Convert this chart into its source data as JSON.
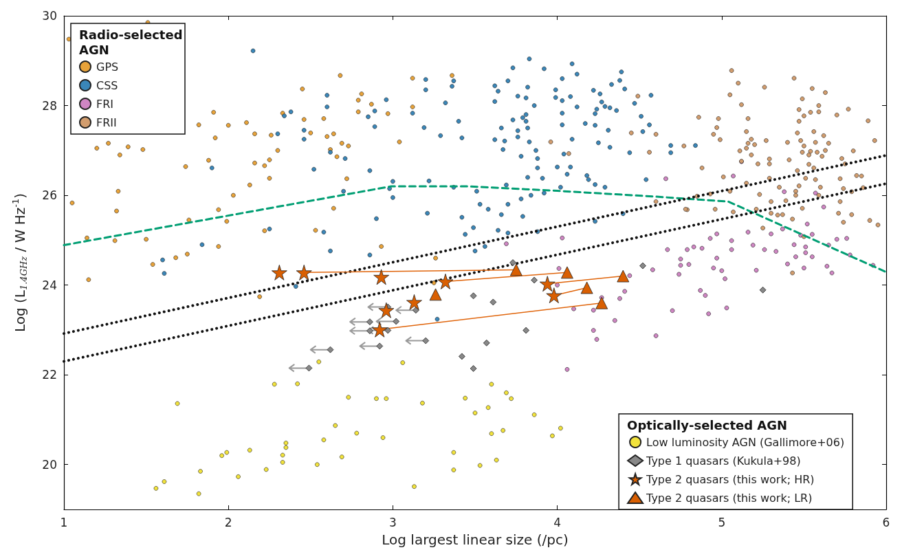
{
  "chart_data": {
    "type": "scatter",
    "xlabel": "Log largest linear size (/pc)",
    "ylabel": "Log (L$_{1.4GHz}$ / W Hz$^{-1}$)",
    "xlim": [
      1,
      6
    ],
    "xticks": [
      1,
      2,
      3,
      4,
      5,
      6
    ],
    "ylim": [
      19,
      30
    ],
    "yticks": [
      20,
      22,
      24,
      26,
      28,
      30
    ],
    "legend": [
      "top left",
      "bottom right"
    ],
    "legend_title": [
      "Radio-selected AGN",
      "Optically-selected AGN"
    ],
    "series": [
      {
        "name": "GPS",
        "color": "#e8a33a",
        "marker": "circle",
        "x": [
          1.03,
          1.51,
          2.68,
          2.45,
          2.81,
          2.79,
          2.87,
          1.91,
          2.33,
          2.79,
          2.97,
          2.46,
          2.58,
          2.11,
          2.0,
          1.82,
          2.16,
          2.26,
          2.5,
          2.64,
          2.6,
          1.92,
          3.04,
          2.69,
          2.73,
          1.2,
          1.27,
          1.39,
          1.48,
          1.34,
          2.3,
          2.62,
          2.66,
          1.88,
          2.16,
          2.22,
          2.25,
          1.74,
          2.25,
          2.72,
          2.13,
          2.03,
          1.33,
          1.05,
          1.32,
          2.64,
          1.94,
          1.76,
          1.99,
          2.22,
          2.53,
          1.14,
          1.31,
          1.5,
          1.94,
          2.93,
          1.68,
          1.75,
          3.12,
          3.36,
          3.12,
          3.26,
          1.15,
          1.54,
          3.25,
          2.19
        ],
        "values": [
          29.48,
          29.85,
          28.67,
          28.37,
          28.26,
          28.12,
          28.03,
          27.85,
          27.83,
          27.86,
          27.82,
          27.69,
          27.71,
          27.62,
          27.56,
          27.57,
          27.37,
          27.34,
          27.39,
          27.37,
          27.31,
          27.28,
          27.19,
          27.16,
          27.1,
          27.05,
          27.16,
          27.08,
          27.02,
          26.9,
          27.0,
          27.02,
          26.86,
          26.78,
          26.72,
          26.66,
          26.79,
          26.64,
          26.38,
          26.37,
          26.23,
          26.0,
          26.09,
          25.83,
          25.65,
          25.71,
          25.68,
          25.45,
          25.42,
          25.21,
          25.22,
          25.05,
          24.99,
          25.02,
          24.86,
          24.86,
          24.61,
          24.69,
          28.61,
          28.67,
          27.97,
          24.6,
          24.12,
          24.46,
          24.05,
          23.74
        ]
      },
      {
        "name": "CSS",
        "color": "#3a86b8",
        "marker": "circle",
        "x": [
          2.15,
          2.6,
          2.96,
          2.38,
          2.34,
          2.6,
          2.85,
          2.89,
          2.89,
          2.3,
          2.46,
          2.46,
          2.62,
          2.71,
          1.9,
          2.52,
          2.86,
          3.0,
          2.98,
          3.0,
          2.7,
          2.9,
          2.25,
          2.58,
          1.84,
          2.62,
          2.86,
          1.6,
          1.61,
          2.41,
          3.27,
          3.83,
          4.09,
          3.73,
          3.92,
          4.39,
          4.12,
          3.2,
          3.37,
          3.7,
          4.03,
          3.36,
          4.38,
          4.33,
          4.41,
          3.62,
          3.2,
          3.64,
          3.82,
          3.99,
          4.22,
          4.26,
          3.76,
          3.81,
          3.99,
          4.08,
          4.03,
          4.57,
          3.32,
          3.62,
          4.27,
          3.86,
          4.12,
          4.29,
          4.32,
          4.24,
          4.36,
          4.47,
          3.12,
          3.81,
          4.03,
          4.23,
          3.79,
          3.81,
          3.73,
          4.03,
          4.17,
          4.51,
          3.4,
          3.19,
          3.82,
          3.66,
          4.23,
          4.56,
          3.76,
          4.31,
          4.52,
          3.29,
          3.76,
          3.42,
          4.09,
          3.62,
          3.68,
          3.83,
          4.25,
          4.32,
          3.87,
          3.67,
          4.44,
          4.69,
          4.69,
          4.84,
          3.78,
          4.04,
          3.88,
          3.88,
          4.0,
          4.08,
          3.82,
          3.91,
          4.06,
          4.18,
          4.19,
          4.23,
          4.29,
          4.02,
          4.54,
          3.22,
          3.37,
          3.69,
          3.51,
          3.92,
          3.84,
          3.78,
          3.53,
          3.58,
          3.7,
          3.66,
          3.79,
          3.21,
          3.42,
          4.4,
          4.23,
          3.49,
          3.44,
          3.64,
          3.7,
          3.88,
          3.5,
          3.56
        ],
        "values": [
          29.22,
          28.23,
          28.13,
          27.86,
          27.77,
          27.97,
          27.75,
          27.88,
          27.53,
          27.37,
          27.45,
          27.25,
          26.96,
          26.82,
          26.61,
          26.58,
          26.55,
          26.31,
          26.15,
          25.95,
          26.09,
          25.48,
          25.25,
          25.18,
          24.9,
          24.76,
          24.67,
          24.56,
          24.26,
          23.97,
          23.24,
          29.04,
          28.93,
          28.84,
          28.82,
          28.75,
          28.7,
          28.58,
          28.55,
          28.55,
          28.6,
          28.43,
          28.56,
          28.47,
          28.37,
          28.44,
          28.35,
          28.32,
          28.41,
          28.35,
          28.34,
          28.26,
          28.21,
          28.17,
          28.18,
          28.2,
          28.11,
          28.23,
          28.06,
          28.09,
          28.08,
          28.0,
          27.97,
          27.98,
          27.95,
          27.92,
          27.89,
          28.05,
          27.83,
          27.8,
          27.83,
          27.82,
          27.73,
          27.65,
          27.68,
          27.57,
          27.6,
          27.76,
          27.65,
          27.51,
          27.5,
          27.5,
          27.56,
          27.57,
          27.44,
          27.45,
          27.42,
          27.33,
          27.3,
          27.28,
          27.25,
          27.24,
          27.21,
          27.19,
          27.17,
          27.07,
          27.0,
          27.02,
          26.95,
          27.11,
          26.95,
          27.11,
          26.87,
          26.92,
          26.82,
          26.61,
          26.63,
          26.63,
          26.4,
          26.38,
          26.47,
          26.44,
          26.35,
          26.24,
          26.18,
          26.18,
          26.35,
          26.32,
          26.18,
          26.23,
          26.09,
          26.05,
          26.0,
          25.92,
          25.8,
          25.69,
          25.8,
          25.57,
          25.53,
          25.6,
          25.51,
          25.59,
          25.42,
          25.28,
          25.13,
          25.22,
          25.16,
          25.19,
          24.76,
          24.86
        ]
      },
      {
        "name": "FRI",
        "color": "#cf86c3",
        "marker": "circle",
        "x": [
          4.66,
          5.07,
          5.12,
          5.38,
          5.57,
          5.62,
          5.52,
          5.37,
          5.3,
          5.16,
          5.48,
          5.55,
          5.7,
          5.76,
          4.97,
          4.93,
          5.06,
          4.79,
          4.83,
          4.88,
          5.06,
          5.19,
          5.26,
          5.33,
          5.44,
          5.51,
          5.51,
          5.45,
          5.55,
          5.65,
          5.78,
          4.97,
          4.75,
          4.75,
          4.8,
          4.74,
          4.95,
          5.0,
          5.21,
          5.4,
          5.5,
          5.64,
          5.67,
          5.92,
          5.02,
          4.87,
          4.9,
          4.7,
          4.92,
          5.03,
          4.03,
          3.69,
          4.01,
          4.0,
          4.44,
          4.41,
          4.38,
          4.27,
          4.1,
          4.22,
          4.35,
          4.22,
          4.24,
          4.6,
          4.06,
          4.58,
          4.67
        ],
        "values": [
          26.37,
          26.43,
          26.75,
          26.08,
          26.05,
          25.74,
          25.36,
          25.25,
          25.14,
          25.18,
          25.11,
          25.13,
          25.02,
          25.04,
          25.14,
          25.04,
          24.99,
          24.79,
          24.85,
          24.82,
          24.79,
          24.89,
          24.79,
          24.75,
          24.9,
          24.85,
          24.72,
          24.63,
          24.63,
          24.89,
          24.67,
          24.6,
          24.58,
          24.44,
          24.46,
          24.24,
          24.38,
          24.32,
          24.33,
          24.47,
          24.38,
          24.42,
          24.27,
          24.44,
          24.14,
          23.88,
          23.77,
          23.43,
          23.36,
          23.49,
          25.05,
          24.92,
          24.37,
          24.0,
          24.21,
          23.86,
          23.7,
          23.72,
          23.47,
          23.44,
          23.21,
          22.99,
          22.79,
          22.87,
          22.12,
          24.34,
          24.79
        ]
      },
      {
        "name": "FRII",
        "color": "#d29d6e",
        "marker": "circle",
        "x": [
          5.06,
          5.44,
          5.1,
          5.26,
          5.55,
          5.63,
          5.05,
          5.49,
          5.12,
          5.59,
          5.77,
          5.47,
          5.54,
          5.59,
          5.5,
          5.7,
          4.86,
          4.98,
          5.16,
          5.47,
          5.89,
          4.97,
          5.15,
          5.46,
          5.56,
          4.95,
          5.62,
          4.99,
          5.18,
          5.27,
          5.48,
          5.93,
          5.16,
          5.4,
          5.57,
          5.65,
          5.15,
          5.2,
          5.5,
          5.11,
          5.49,
          5.54,
          5.58,
          5.63,
          5.8,
          5.18,
          5.53,
          5.61,
          5.29,
          5.41,
          5.73,
          5.12,
          5.22,
          5.29,
          5.53,
          5.75,
          4.88,
          5.56,
          5.46,
          5.01,
          5.29,
          5.51,
          5.57,
          5.72,
          5.82,
          5.85,
          5.15,
          5.47,
          5.35,
          5.6,
          5.86,
          5.74,
          5.05,
          5.45,
          5.79,
          4.85,
          4.93,
          5.23,
          5.45,
          5.59,
          5.39,
          5.3,
          5.72,
          4.79,
          4.96,
          5.07,
          5.21,
          5.3,
          5.34,
          5.37,
          5.49,
          5.71,
          5.79,
          5.43,
          5.74,
          5.9,
          5.95,
          5.25,
          5.5,
          5.43,
          4.49,
          4.45,
          4.6,
          3.96,
          4.07,
          4.77,
          4.56,
          4.6,
          4.78
        ],
        "values": [
          28.78,
          28.61,
          28.5,
          28.41,
          28.38,
          28.29,
          28.24,
          28.15,
          28.02,
          28.0,
          27.92,
          27.91,
          27.85,
          27.86,
          27.77,
          27.79,
          27.74,
          27.71,
          27.71,
          27.65,
          27.66,
          27.51,
          27.42,
          27.39,
          27.42,
          27.36,
          27.33,
          27.24,
          27.25,
          27.22,
          27.22,
          27.22,
          27.16,
          27.18,
          27.18,
          27.16,
          27.05,
          27.13,
          27.1,
          26.99,
          26.96,
          26.98,
          26.96,
          27.0,
          26.99,
          26.9,
          26.9,
          26.87,
          26.81,
          26.79,
          26.82,
          26.76,
          26.7,
          26.7,
          26.69,
          26.7,
          26.61,
          26.61,
          26.55,
          26.41,
          26.38,
          26.38,
          26.35,
          26.37,
          26.44,
          26.43,
          26.27,
          26.21,
          26.18,
          26.18,
          26.17,
          26.15,
          26.09,
          26.09,
          26.08,
          25.98,
          26.03,
          26.02,
          26.0,
          26.0,
          25.88,
          25.86,
          25.86,
          25.68,
          25.69,
          25.63,
          25.69,
          25.6,
          25.56,
          25.57,
          25.71,
          25.6,
          25.57,
          25.47,
          25.4,
          25.44,
          25.34,
          25.27,
          25.08,
          24.27,
          28.21,
          27.39,
          27.36,
          27.19,
          26.93,
          27.1,
          26.96,
          25.86,
          25.69
        ]
      },
      {
        "name": "Low luminosity AGN (Gallimore+06)",
        "color": "#f2e33c",
        "marker": "circle",
        "x": [
          1.69,
          2.28,
          2.42,
          2.73,
          2.9,
          2.96,
          3.18,
          3.44,
          3.6,
          3.69,
          3.72,
          3.5,
          3.58,
          3.86,
          3.6,
          3.67,
          3.97,
          4.02,
          3.37,
          3.37,
          3.53,
          3.63,
          3.13,
          2.65,
          2.78,
          2.94,
          2.58,
          2.69,
          2.54,
          2.35,
          2.35,
          2.33,
          2.33,
          2.13,
          1.96,
          1.99,
          2.23,
          2.06,
          1.83,
          1.61,
          1.56,
          1.82,
          2.55,
          3.06
        ],
        "values": [
          21.36,
          21.79,
          21.8,
          21.5,
          21.47,
          21.47,
          21.37,
          21.48,
          21.79,
          21.6,
          21.47,
          21.15,
          21.27,
          21.11,
          20.69,
          20.76,
          20.64,
          20.81,
          20.27,
          19.88,
          19.98,
          20.1,
          19.51,
          20.87,
          20.7,
          20.6,
          20.55,
          20.17,
          20.0,
          20.48,
          20.38,
          20.21,
          20.05,
          20.32,
          20.2,
          20.27,
          19.89,
          19.73,
          19.85,
          19.62,
          19.47,
          19.35,
          22.29,
          22.27
        ]
      },
      {
        "name": "Type 1 quasars (Kukula+98)",
        "color": "#888888",
        "marker": "diamond",
        "x": [
          3.73,
          3.86,
          3.49,
          3.61,
          2.86,
          3.02,
          2.86,
          2.97,
          3.14,
          3.2,
          2.92,
          2.62,
          2.49,
          2.97,
          3.42,
          3.49,
          3.57,
          3.81,
          4.52,
          5.25
        ],
        "values": [
          24.5,
          24.11,
          23.76,
          23.62,
          23.18,
          23.19,
          22.98,
          22.99,
          23.44,
          22.76,
          22.64,
          22.56,
          22.15,
          23.51,
          22.41,
          22.14,
          22.71,
          22.99,
          24.43,
          23.89
        ],
        "xerrors": [
          null,
          null,
          null,
          null,
          [
            2.74,
            2.86
          ],
          [
            2.9,
            3.02
          ],
          [
            2.74,
            2.86
          ],
          [
            2.85,
            2.97
          ],
          [
            3.02,
            3.14
          ],
          [
            3.08,
            3.2
          ],
          [
            2.8,
            2.92
          ],
          [
            2.5,
            2.62
          ],
          [
            2.37,
            2.49
          ],
          [
            2.85,
            2.97
          ],
          null,
          null,
          null,
          null,
          null,
          null
        ]
      },
      {
        "name": "Type 2 quasars (this work; HR)",
        "color": "#d95f02",
        "marker": "star",
        "x": [
          2.31,
          2.46,
          2.93,
          3.32,
          3.13,
          2.96,
          2.92,
          3.94,
          3.98
        ],
        "values": [
          24.28,
          24.28,
          24.18,
          24.08,
          23.62,
          23.44,
          23.01,
          24.03,
          23.77
        ]
      },
      {
        "name": "Type 2 quasars (this work; LR)",
        "color": "#d95f02",
        "marker": "triangle",
        "x": [
          3.75,
          4.06,
          3.26,
          4.18,
          4.4,
          4.27
        ],
        "values": [
          24.34,
          24.28,
          23.79,
          23.94,
          24.2,
          23.6
        ]
      },
      {
        "type": "line",
        "color": "#009e73",
        "line_style": "dashed",
        "x": [
          1,
          2.99,
          3.45,
          4.0,
          4.6,
          5.04,
          6
        ],
        "values": [
          24.89,
          26.2,
          26.2,
          26.1,
          25.97,
          25.86,
          24.29
        ]
      },
      {
        "type": "line",
        "color": "#111111",
        "line_style": "dotted",
        "x": [
          1,
          6
        ],
        "values": [
          22.92,
          26.89
        ]
      },
      {
        "type": "line",
        "color": "#111111",
        "line_style": "dotted",
        "x": [
          1,
          6
        ],
        "values": [
          22.3,
          26.26
        ]
      },
      {
        "type": "line",
        "color": "#e0650c",
        "line_style": "solid",
        "x": [
          2.46,
          3.75
        ],
        "values": [
          24.28,
          24.34
        ]
      },
      {
        "type": "line",
        "color": "#e0650c",
        "line_style": "solid",
        "x": [
          3.32,
          4.06
        ],
        "values": [
          24.08,
          24.28
        ]
      },
      {
        "type": "line",
        "color": "#e0650c",
        "line_style": "solid",
        "x": [
          3.94,
          4.4
        ],
        "values": [
          24.03,
          24.2
        ]
      },
      {
        "type": "line",
        "color": "#e0650c",
        "line_style": "solid",
        "x": [
          3.98,
          4.18
        ],
        "values": [
          23.77,
          23.94
        ]
      },
      {
        "type": "line",
        "color": "#e0650c",
        "line_style": "solid",
        "x": [
          2.92,
          4.27
        ],
        "values": [
          23.01,
          23.6
        ]
      }
    ]
  }
}
